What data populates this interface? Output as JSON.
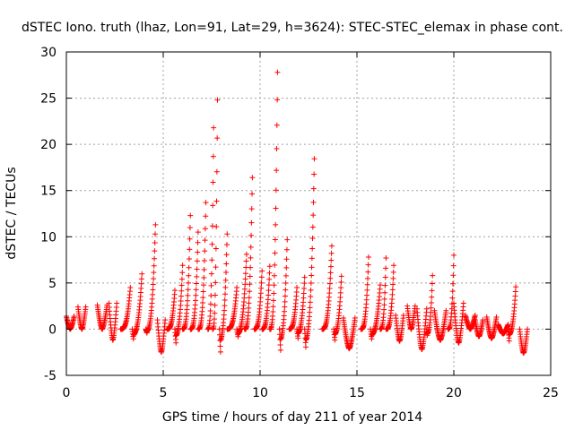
{
  "chart_data": {
    "type": "scatter",
    "title": "dSTEC Iono. truth (lhaz, Lon=91, Lat=29, h=3624): STEC-STEC_elemax in phase cont.",
    "xlabel": "GPS time / hours of day 211 of year 2014",
    "ylabel": "dSTEC  / TECUs",
    "xlim": [
      0,
      25
    ],
    "ylim": [
      -5,
      30
    ],
    "xticks": [
      0,
      5,
      10,
      15,
      20,
      25
    ],
    "yticks": [
      -5,
      0,
      5,
      10,
      15,
      20,
      25,
      30
    ],
    "xtick_labels": [
      "0",
      "5",
      "10",
      "15",
      "20",
      "25"
    ],
    "ytick_labels": [
      "-5",
      "0",
      "5",
      "10",
      "15",
      "20",
      "25",
      "30"
    ],
    "grid": true,
    "legend": "none",
    "marker": "+",
    "series": [
      {
        "name": "dSTEC",
        "color": "#ff0000",
        "arcs": [
          {
            "t": [
              0.0,
              0.4
            ],
            "y": [
              0.0,
              1.4
            ]
          },
          {
            "t": [
              0.6,
              1.0
            ],
            "y": [
              0.0,
              2.4
            ]
          },
          {
            "t": [
              1.6,
              2.1
            ],
            "y": [
              0.0,
              2.6
            ]
          },
          {
            "t": [
              2.2,
              2.6
            ],
            "y": [
              -1.2,
              2.8
            ]
          },
          {
            "t": [
              2.8,
              3.3
            ],
            "y": [
              0.0,
              4.5
            ]
          },
          {
            "t": [
              3.4,
              3.9
            ],
            "y": [
              -1.3,
              5.2
            ]
          },
          {
            "t": [
              4.1,
              4.6
            ],
            "y": [
              -0.5,
              11.0
            ]
          },
          {
            "t": [
              4.7,
              5.1
            ],
            "y": [
              -2.5,
              1.0
            ]
          },
          {
            "t": [
              5.2,
              5.6
            ],
            "y": [
              0.0,
              4.2
            ]
          },
          {
            "t": [
              5.6,
              6.0
            ],
            "y": [
              -1.5,
              6.0
            ]
          },
          {
            "t": [
              6.0,
              6.4
            ],
            "y": [
              0.0,
              12.3
            ]
          },
          {
            "t": [
              6.4,
              6.8
            ],
            "y": [
              0.0,
              10.5
            ]
          },
          {
            "t": [
              6.8,
              7.2
            ],
            "y": [
              0.0,
              13.7
            ]
          },
          {
            "t": [
              7.3,
              7.6
            ],
            "y": [
              0.0,
              21.8
            ]
          },
          {
            "t": [
              7.55,
              7.8
            ],
            "y": [
              0.0,
              24.8
            ]
          },
          {
            "t": [
              7.9,
              8.3
            ],
            "y": [
              -2.5,
              8.8
            ]
          },
          {
            "t": [
              8.3,
              8.8
            ],
            "y": [
              0.0,
              4.5
            ]
          },
          {
            "t": [
              8.8,
              9.3
            ],
            "y": [
              -1.0,
              7.5
            ]
          },
          {
            "t": [
              9.2,
              9.6
            ],
            "y": [
              0.0,
              16.4
            ]
          },
          {
            "t": [
              9.7,
              10.1
            ],
            "y": [
              0.0,
              6.3
            ]
          },
          {
            "t": [
              10.1,
              10.5
            ],
            "y": [
              0.0,
              6.8
            ]
          },
          {
            "t": [
              10.5,
              10.9
            ],
            "y": [
              0.0,
              27.8
            ]
          },
          {
            "t": [
              11.0,
              11.4
            ],
            "y": [
              -2.3,
              8.3
            ]
          },
          {
            "t": [
              11.5,
              11.9
            ],
            "y": [
              0.0,
              4.5
            ]
          },
          {
            "t": [
              11.9,
              12.3
            ],
            "y": [
              -1.0,
              5.0
            ]
          },
          {
            "t": [
              12.3,
              12.8
            ],
            "y": [
              -2.4,
              17.0
            ]
          },
          {
            "t": [
              13.2,
              13.7
            ],
            "y": [
              0.0,
              9.0
            ]
          },
          {
            "t": [
              13.8,
              14.2
            ],
            "y": [
              -1.2,
              5.0
            ]
          },
          {
            "t": [
              14.3,
              14.9
            ],
            "y": [
              -2.1,
              1.2
            ]
          },
          {
            "t": [
              15.2,
              15.6
            ],
            "y": [
              0.0,
              7.8
            ]
          },
          {
            "t": [
              15.7,
              16.2
            ],
            "y": [
              -1.3,
              4.0
            ]
          },
          {
            "t": [
              16.2,
              16.5
            ],
            "y": [
              0.0,
              7.7
            ]
          },
          {
            "t": [
              16.5,
              16.9
            ],
            "y": [
              0.0,
              6.9
            ]
          },
          {
            "t": [
              17.0,
              17.4
            ],
            "y": [
              -1.3,
              1.5
            ]
          },
          {
            "t": [
              17.6,
              18.0
            ],
            "y": [
              0.0,
              2.5
            ]
          },
          {
            "t": [
              18.1,
              18.6
            ],
            "y": [
              -2.2,
              2.2
            ]
          },
          {
            "t": [
              18.6,
              18.9
            ],
            "y": [
              -1.0,
              5.2
            ]
          },
          {
            "t": [
              19.0,
              19.6
            ],
            "y": [
              -1.2,
              2.0
            ]
          },
          {
            "t": [
              19.7,
              20.0
            ],
            "y": [
              0.0,
              8.0
            ]
          },
          {
            "t": [
              20.0,
              20.5
            ],
            "y": [
              -1.5,
              2.8
            ]
          },
          {
            "t": [
              20.6,
              21.1
            ],
            "y": [
              0.0,
              1.5
            ]
          },
          {
            "t": [
              21.1,
              21.5
            ],
            "y": [
              -0.8,
              1.0
            ]
          },
          {
            "t": [
              21.7,
              22.2
            ],
            "y": [
              -1.0,
              1.3
            ]
          },
          {
            "t": [
              22.3,
              22.8
            ],
            "y": [
              -0.5,
              0.5
            ]
          },
          {
            "t": [
              22.8,
              23.2
            ],
            "y": [
              -1.3,
              3.8
            ]
          },
          {
            "t": [
              23.4,
              23.8
            ],
            "y": [
              -2.6,
              0.0
            ]
          }
        ]
      }
    ]
  }
}
